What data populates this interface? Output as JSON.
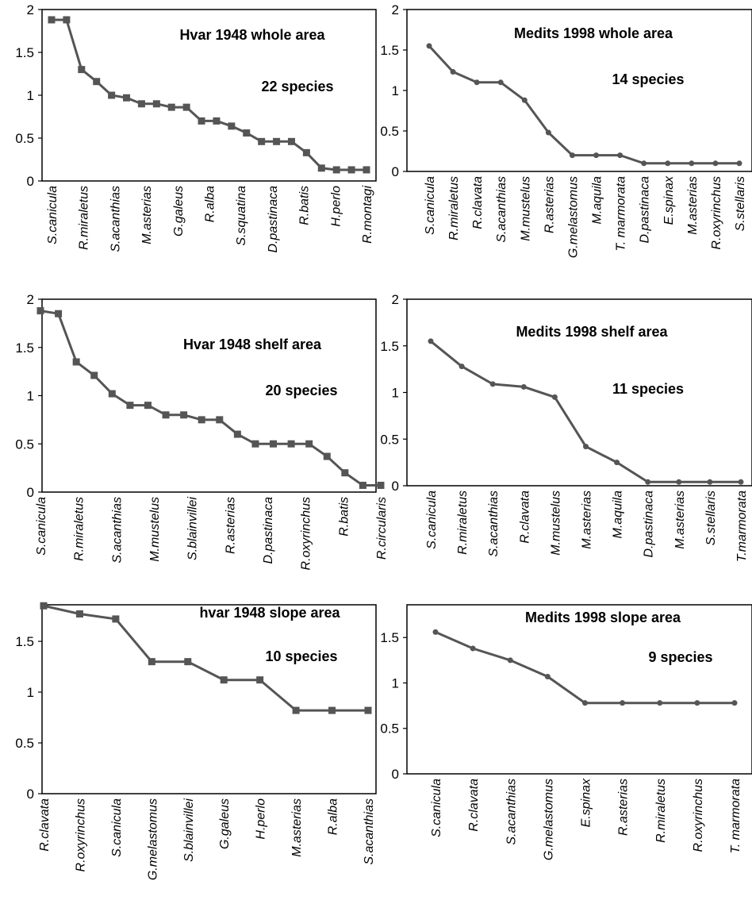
{
  "chart_data": [
    {
      "type": "line",
      "title": "Hvar 1948 whole area",
      "annotation": "22 species",
      "ylim": [
        0,
        2
      ],
      "yticks": [
        0,
        0.5,
        1,
        1.5,
        2
      ],
      "tick_labels": [
        "S.canicula",
        "R.miraletus",
        "S.acanthias",
        "M.asterias",
        "G.galeus",
        "R.alba",
        "S.squatina",
        "D.pastinaca",
        "R.batis",
        "H.perlo",
        "R.montagi"
      ],
      "values": [
        1.88,
        1.88,
        1.3,
        1.16,
        1.0,
        0.97,
        0.9,
        0.9,
        0.86,
        0.86,
        0.7,
        0.7,
        0.64,
        0.56,
        0.46,
        0.46,
        0.46,
        0.33,
        0.15,
        0.13,
        0.13,
        0.13
      ],
      "marker": "square",
      "color": "#555555"
    },
    {
      "type": "line",
      "title": "Medits 1998  whole area",
      "annotation": "14 species",
      "ylim": [
        0,
        2
      ],
      "yticks": [
        0,
        0.5,
        1,
        1.5,
        2
      ],
      "categories": [
        "S.canicula",
        "R.miraletus",
        "R.clavata",
        "S.acanthias",
        "M.mustelus",
        "R.asterias",
        "G.melastomus",
        "M.aquila",
        "T. marmorata",
        "D.pastinaca",
        "E.spinax",
        "M.asterias",
        "R.oxyrinchus",
        "S.stellaris"
      ],
      "values": [
        1.55,
        1.23,
        1.1,
        1.1,
        0.88,
        0.48,
        0.2,
        0.2,
        0.2,
        0.1,
        0.1,
        0.1,
        0.1,
        0.1
      ],
      "marker": "dot",
      "color": "#555555"
    },
    {
      "type": "line",
      "title": "Hvar 1948  shelf area",
      "annotation": "20 species",
      "ylim": [
        0,
        2
      ],
      "yticks": [
        0,
        0.5,
        1,
        1.5,
        2
      ],
      "tick_labels": [
        "S.canicula",
        "R.miraletus",
        "S.acanthias",
        "M.mustelus",
        "S.blainvillei",
        "R.asterias",
        "D.pastinaca",
        "R.oxyrinchus",
        "R.batis",
        "R.circularis"
      ],
      "values": [
        1.88,
        1.85,
        1.35,
        1.21,
        1.02,
        0.9,
        0.9,
        0.8,
        0.8,
        0.75,
        0.75,
        0.6,
        0.5,
        0.5,
        0.5,
        0.5,
        0.37,
        0.2,
        0.07,
        0.07
      ],
      "marker": "square",
      "color": "#555555"
    },
    {
      "type": "line",
      "title": "Medits 1998 shelf area",
      "annotation": "11 species",
      "ylim": [
        0,
        2
      ],
      "yticks": [
        0,
        0.5,
        1,
        1.5,
        2
      ],
      "categories": [
        "S.canicula",
        "R.miraletus",
        "S.acanthias",
        "R.clavata",
        "M.mustelus",
        "M.asterias",
        "M.aquila",
        "D.pastinaca",
        "M.asterias",
        "S.stellaris",
        "T.marmorata"
      ],
      "values": [
        1.55,
        1.28,
        1.09,
        1.06,
        0.95,
        0.42,
        0.25,
        0.04,
        0.04,
        0.04,
        0.04
      ],
      "marker": "dot",
      "color": "#555555"
    },
    {
      "type": "line",
      "title": "hvar 1948  slope area",
      "annotation": "10 species",
      "ylim": [
        0,
        1.86
      ],
      "yticks": [
        0,
        0.5,
        1,
        1.5
      ],
      "categories": [
        "R.clavata",
        "R.oxyrinchus",
        "S.canicula",
        "G.melastomus",
        "S.blainvillei",
        "G.galeus",
        "H.perlo",
        "M.asterias",
        "R.alba",
        "S.acanthias"
      ],
      "values": [
        1.85,
        1.77,
        1.72,
        1.3,
        1.3,
        1.12,
        1.12,
        0.82,
        0.82,
        0.82
      ],
      "marker": "square",
      "color": "#555555"
    },
    {
      "type": "line",
      "title": "Medits 1998 slope area",
      "annotation": "9 species",
      "ylim": [
        0,
        1.86
      ],
      "yticks": [
        0,
        0.5,
        1,
        1.5
      ],
      "categories": [
        "S.canicula",
        "R.clavata",
        "S.acanthias",
        "G.melastomus",
        "E.spinax",
        "R.asterias",
        "R.miraletus",
        "R.oxyrinchus",
        "T. marmorata"
      ],
      "values": [
        1.56,
        1.38,
        1.25,
        1.07,
        0.78,
        0.78,
        0.78,
        0.78,
        0.78
      ],
      "marker": "dot",
      "color": "#555555"
    }
  ]
}
